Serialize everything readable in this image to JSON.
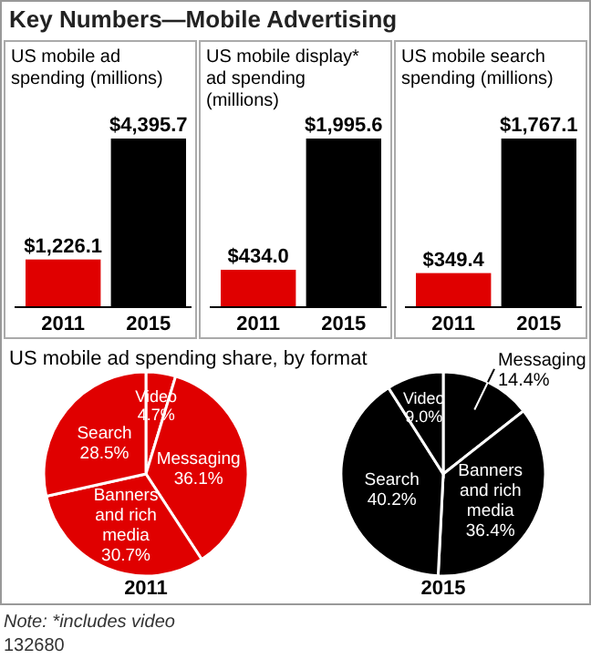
{
  "chart_data": [
    {
      "type": "bar",
      "title": "US mobile ad spending (millions)",
      "annotations": [
        "Key Numbers—Mobile Advertising"
      ],
      "categories": [
        "2011",
        "2015"
      ],
      "values": [
        1226.1,
        4395.7
      ],
      "colors": [
        "#e00000",
        "#000000"
      ],
      "value_labels": [
        "$1,226.1",
        "$4,395.7"
      ]
    },
    {
      "type": "bar",
      "title": "US mobile display* ad spending (millions)",
      "categories": [
        "2011",
        "2015"
      ],
      "values": [
        434.0,
        1995.6
      ],
      "colors": [
        "#e00000",
        "#000000"
      ],
      "value_labels": [
        "$434.0",
        "$1,995.6"
      ]
    },
    {
      "type": "bar",
      "title": "US mobile search spending (millions)",
      "categories": [
        "2011",
        "2015"
      ],
      "values": [
        349.4,
        1767.1
      ],
      "colors": [
        "#e00000",
        "#000000"
      ],
      "value_labels": [
        "$349.4",
        "$1,767.1"
      ]
    },
    {
      "type": "pie",
      "title": "US mobile ad spending share, by format",
      "xlabel": "2011",
      "categories": [
        "Video",
        "Messaging",
        "Banners and rich media",
        "Search"
      ],
      "values": [
        4.7,
        36.1,
        30.7,
        28.5
      ],
      "value_labels": [
        "4.7%",
        "36.1%",
        "30.7%",
        "28.5%"
      ],
      "colors": [
        "#e00000",
        "#e00000",
        "#e00000",
        "#e00000"
      ]
    },
    {
      "type": "pie",
      "xlabel": "2015",
      "categories": [
        "Messaging",
        "Banners and rich media",
        "Search",
        "Video"
      ],
      "values": [
        14.4,
        36.4,
        40.2,
        9.0
      ],
      "value_labels": [
        "14.4%",
        "36.4%",
        "40.2%",
        "9.0%"
      ],
      "colors": [
        "#000000",
        "#000000",
        "#000000",
        "#000000"
      ],
      "annotations": [
        "Note: *includes video",
        "132680"
      ]
    }
  ]
}
